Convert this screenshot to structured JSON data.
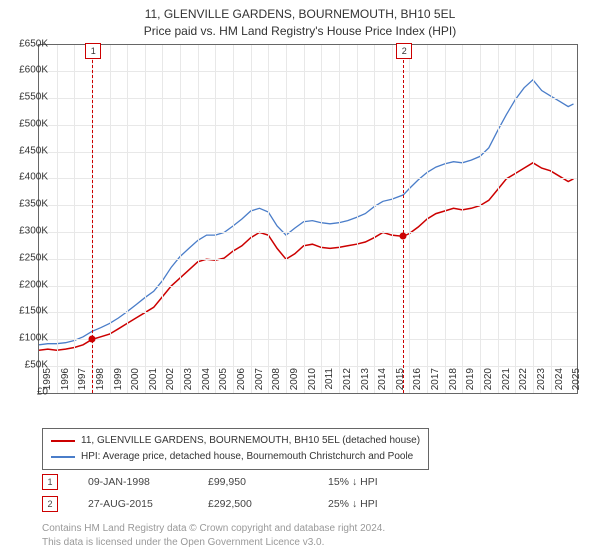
{
  "title_line1": "11, GLENVILLE GARDENS, BOURNEMOUTH, BH10 5EL",
  "title_line2": "Price paid vs. HM Land Registry's House Price Index (HPI)",
  "chart": {
    "type": "line",
    "background_color": "#ffffff",
    "grid_color": "#e8e8e8",
    "border_color": "#666666",
    "x_range": [
      1995,
      2025.5
    ],
    "y_range": [
      0,
      650000
    ],
    "y_ticks": [
      0,
      50000,
      100000,
      150000,
      200000,
      250000,
      300000,
      350000,
      400000,
      450000,
      500000,
      550000,
      600000,
      650000
    ],
    "y_tick_labels": [
      "£0",
      "£50K",
      "£100K",
      "£150K",
      "£200K",
      "£250K",
      "£300K",
      "£350K",
      "£400K",
      "£450K",
      "£500K",
      "£550K",
      "£600K",
      "£650K"
    ],
    "x_ticks": [
      1995,
      1996,
      1997,
      1998,
      1999,
      2000,
      2001,
      2002,
      2003,
      2004,
      2005,
      2006,
      2007,
      2008,
      2009,
      2010,
      2011,
      2012,
      2013,
      2014,
      2015,
      2016,
      2017,
      2018,
      2019,
      2020,
      2021,
      2022,
      2023,
      2024,
      2025
    ],
    "tick_fontsize": 10,
    "title_fontsize": 12,
    "series": [
      {
        "id": "property",
        "label": "11, GLENVILLE GARDENS, BOURNEMOUTH, BH10 5EL (detached house)",
        "color": "#cc0000",
        "line_width": 1.5,
        "data": [
          [
            1995,
            80000
          ],
          [
            1995.5,
            82000
          ],
          [
            1996,
            80000
          ],
          [
            1996.5,
            82000
          ],
          [
            1997,
            85000
          ],
          [
            1997.5,
            90000
          ],
          [
            1998,
            99950
          ],
          [
            1998.5,
            105000
          ],
          [
            1999,
            110000
          ],
          [
            1999.5,
            120000
          ],
          [
            2000,
            130000
          ],
          [
            2000.5,
            140000
          ],
          [
            2001,
            150000
          ],
          [
            2001.5,
            160000
          ],
          [
            2002,
            180000
          ],
          [
            2002.5,
            200000
          ],
          [
            2003,
            215000
          ],
          [
            2003.5,
            230000
          ],
          [
            2004,
            245000
          ],
          [
            2004.5,
            250000
          ],
          [
            2005,
            248000
          ],
          [
            2005.5,
            252000
          ],
          [
            2006,
            265000
          ],
          [
            2006.5,
            275000
          ],
          [
            2007,
            290000
          ],
          [
            2007.5,
            300000
          ],
          [
            2008,
            295000
          ],
          [
            2008.5,
            270000
          ],
          [
            2009,
            250000
          ],
          [
            2009.5,
            260000
          ],
          [
            2010,
            275000
          ],
          [
            2010.5,
            278000
          ],
          [
            2011,
            272000
          ],
          [
            2011.5,
            270000
          ],
          [
            2012,
            272000
          ],
          [
            2012.5,
            275000
          ],
          [
            2013,
            278000
          ],
          [
            2013.5,
            282000
          ],
          [
            2014,
            290000
          ],
          [
            2014.5,
            300000
          ],
          [
            2015,
            295000
          ],
          [
            2015.65,
            292500
          ],
          [
            2016,
            298000
          ],
          [
            2016.5,
            310000
          ],
          [
            2017,
            325000
          ],
          [
            2017.5,
            335000
          ],
          [
            2018,
            340000
          ],
          [
            2018.5,
            345000
          ],
          [
            2019,
            342000
          ],
          [
            2019.5,
            345000
          ],
          [
            2020,
            350000
          ],
          [
            2020.5,
            360000
          ],
          [
            2021,
            380000
          ],
          [
            2021.5,
            400000
          ],
          [
            2022,
            410000
          ],
          [
            2022.5,
            420000
          ],
          [
            2023,
            430000
          ],
          [
            2023.5,
            420000
          ],
          [
            2024,
            415000
          ],
          [
            2024.5,
            405000
          ],
          [
            2025,
            395000
          ],
          [
            2025.3,
            400000
          ]
        ]
      },
      {
        "id": "hpi",
        "label": "HPI: Average price, detached house, Bournemouth Christchurch and Poole",
        "color": "#4a7dc9",
        "line_width": 1.3,
        "data": [
          [
            1995,
            90000
          ],
          [
            1995.5,
            92000
          ],
          [
            1996,
            92000
          ],
          [
            1996.5,
            94000
          ],
          [
            1997,
            98000
          ],
          [
            1997.5,
            105000
          ],
          [
            1998,
            115000
          ],
          [
            1998.5,
            122000
          ],
          [
            1999,
            130000
          ],
          [
            1999.5,
            140000
          ],
          [
            2000,
            152000
          ],
          [
            2000.5,
            165000
          ],
          [
            2001,
            178000
          ],
          [
            2001.5,
            190000
          ],
          [
            2002,
            210000
          ],
          [
            2002.5,
            235000
          ],
          [
            2003,
            255000
          ],
          [
            2003.5,
            270000
          ],
          [
            2004,
            285000
          ],
          [
            2004.5,
            295000
          ],
          [
            2005,
            295000
          ],
          [
            2005.5,
            300000
          ],
          [
            2006,
            312000
          ],
          [
            2006.5,
            325000
          ],
          [
            2007,
            340000
          ],
          [
            2007.5,
            345000
          ],
          [
            2008,
            338000
          ],
          [
            2008.5,
            312000
          ],
          [
            2009,
            295000
          ],
          [
            2009.5,
            308000
          ],
          [
            2010,
            320000
          ],
          [
            2010.5,
            322000
          ],
          [
            2011,
            318000
          ],
          [
            2011.5,
            316000
          ],
          [
            2012,
            318000
          ],
          [
            2012.5,
            322000
          ],
          [
            2013,
            328000
          ],
          [
            2013.5,
            335000
          ],
          [
            2014,
            348000
          ],
          [
            2014.5,
            358000
          ],
          [
            2015,
            362000
          ],
          [
            2015.65,
            370000
          ],
          [
            2016,
            382000
          ],
          [
            2016.5,
            398000
          ],
          [
            2017,
            412000
          ],
          [
            2017.5,
            422000
          ],
          [
            2018,
            428000
          ],
          [
            2018.5,
            432000
          ],
          [
            2019,
            430000
          ],
          [
            2019.5,
            435000
          ],
          [
            2020,
            442000
          ],
          [
            2020.5,
            458000
          ],
          [
            2021,
            490000
          ],
          [
            2021.5,
            520000
          ],
          [
            2022,
            548000
          ],
          [
            2022.5,
            570000
          ],
          [
            2023,
            585000
          ],
          [
            2023.5,
            565000
          ],
          [
            2024,
            555000
          ],
          [
            2024.5,
            545000
          ],
          [
            2025,
            535000
          ],
          [
            2025.3,
            540000
          ]
        ]
      }
    ],
    "markers": [
      {
        "n": "1",
        "x": 1998.02,
        "y": 99950
      },
      {
        "n": "2",
        "x": 2015.65,
        "y": 292500
      }
    ]
  },
  "events": [
    {
      "n": "1",
      "date": "09-JAN-1998",
      "price": "£99,950",
      "delta": "15%",
      "dir": "↓",
      "vs": "HPI"
    },
    {
      "n": "2",
      "date": "27-AUG-2015",
      "price": "£292,500",
      "delta": "25%",
      "dir": "↓",
      "vs": "HPI"
    }
  ],
  "footer_line1": "Contains HM Land Registry data © Crown copyright and database right 2024.",
  "footer_line2": "This data is licensed under the Open Government Licence v3.0."
}
